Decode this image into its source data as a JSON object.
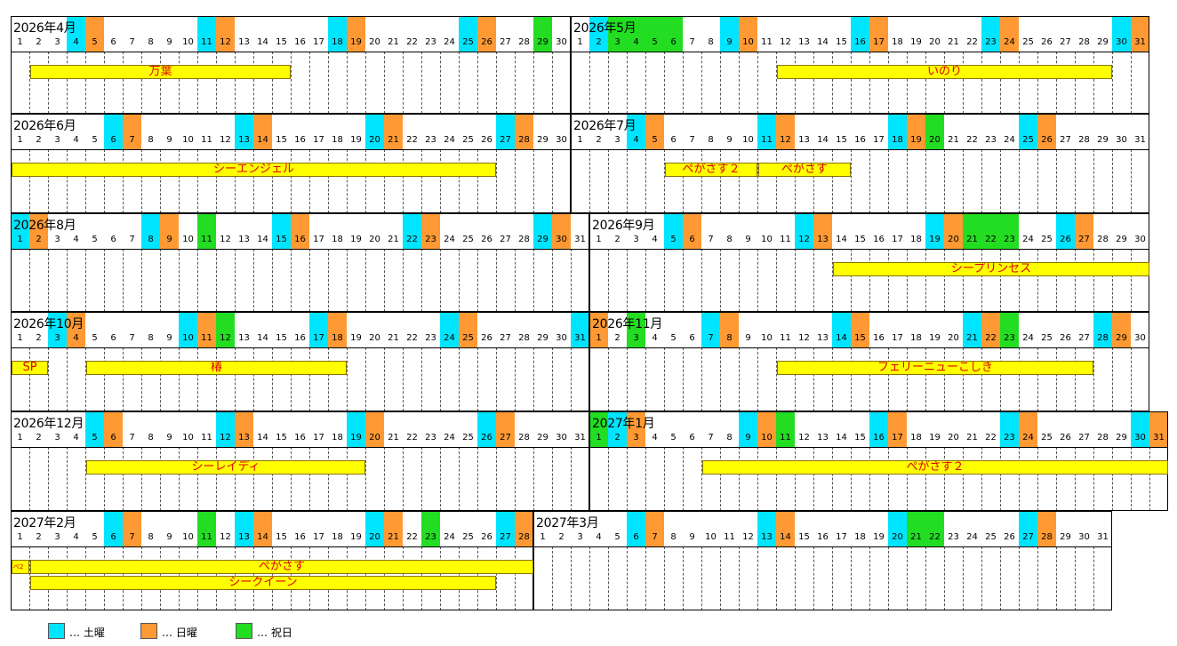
{
  "colors": {
    "saturday": "#00e5ff",
    "sunday": "#ff9933",
    "holiday": "#22dd22",
    "bar_fill": "#ffff00",
    "bar_text": "#e00000"
  },
  "months": [
    {
      "label": "2026年4月",
      "days": 30,
      "sat": [
        4,
        11,
        18,
        25
      ],
      "sun": [
        5,
        12,
        19,
        26
      ],
      "hol": [
        29
      ],
      "bars": [
        {
          "label": "万葉",
          "start": 2,
          "end": 15,
          "row": 0
        }
      ]
    },
    {
      "label": "2026年5月",
      "days": 31,
      "sat": [
        2,
        9,
        16,
        23,
        30
      ],
      "sun": [
        10,
        17,
        24,
        31
      ],
      "hol": [
        3,
        4,
        5,
        6
      ],
      "bars": [
        {
          "label": "いのり",
          "start": 12,
          "end": 29,
          "row": 0
        }
      ]
    },
    {
      "label": "2026年6月",
      "days": 30,
      "sat": [
        6,
        13,
        20,
        27
      ],
      "sun": [
        7,
        14,
        21,
        28
      ],
      "hol": [],
      "bars": [
        {
          "label": "シーエンジェル",
          "start": 1,
          "end": 26,
          "row": 0
        }
      ]
    },
    {
      "label": "2026年7月",
      "days": 31,
      "sat": [
        4,
        11,
        18,
        25
      ],
      "sun": [
        5,
        12,
        19,
        26
      ],
      "hol": [
        20
      ],
      "bars": [
        {
          "label": "ぺがさす２",
          "start": 6,
          "end": 10,
          "row": 0
        },
        {
          "label": "ぺがさす",
          "start": 11,
          "end": 15,
          "row": 0
        }
      ]
    },
    {
      "label": "2026年8月",
      "days": 31,
      "sat": [
        1,
        8,
        15,
        22,
        29
      ],
      "sun": [
        2,
        9,
        16,
        23,
        30
      ],
      "hol": [
        11
      ],
      "bars": []
    },
    {
      "label": "2026年9月",
      "days": 30,
      "sat": [
        5,
        12,
        19,
        26
      ],
      "sun": [
        6,
        13,
        20,
        27
      ],
      "hol": [
        21,
        22,
        23
      ],
      "bars": [
        {
          "label": "シープリンセス",
          "start": 14,
          "end": 30,
          "row": 0
        }
      ]
    },
    {
      "label": "2026年10月",
      "days": 31,
      "sat": [
        3,
        10,
        17,
        24,
        31
      ],
      "sun": [
        4,
        11,
        18,
        25
      ],
      "hol": [
        12
      ],
      "bars": [
        {
          "label": "SP",
          "start": 1,
          "end": 2,
          "row": 0
        },
        {
          "label": "椿",
          "start": 5,
          "end": 18,
          "row": 0
        }
      ]
    },
    {
      "label": "2026年11月",
      "days": 30,
      "sat": [
        7,
        14,
        21,
        28
      ],
      "sun": [
        1,
        8,
        15,
        22,
        29
      ],
      "hol": [
        3,
        23
      ],
      "bars": [
        {
          "label": "フェリーニューこしき",
          "start": 11,
          "end": 27,
          "row": 0
        }
      ]
    },
    {
      "label": "2026年12月",
      "days": 31,
      "sat": [
        5,
        12,
        19,
        26
      ],
      "sun": [
        6,
        13,
        20,
        27
      ],
      "hol": [],
      "bars": [
        {
          "label": "シーレイディ",
          "start": 5,
          "end": 19,
          "row": 0
        }
      ]
    },
    {
      "label": "2027年1月",
      "days": 31,
      "sat": [
        2,
        9,
        16,
        23,
        30
      ],
      "sun": [
        3,
        10,
        17,
        24,
        31
      ],
      "hol": [
        1,
        11
      ],
      "bars": [
        {
          "label": "ぺがさす２",
          "start": 7,
          "end": 31,
          "row": 0
        }
      ]
    },
    {
      "label": "2027年2月",
      "days": 28,
      "sat": [
        6,
        13,
        20,
        27
      ],
      "sun": [
        7,
        14,
        21,
        28
      ],
      "hol": [
        11,
        23
      ],
      "bars": [
        {
          "label": "ぺ2",
          "start": 1,
          "end": 1,
          "row": 0
        },
        {
          "label": "ぺがさす",
          "start": 2,
          "end": 28,
          "row": 0
        },
        {
          "label": "シークイーン",
          "start": 2,
          "end": 26,
          "row": 1
        }
      ]
    },
    {
      "label": "2027年3月",
      "days": 31,
      "sat": [
        6,
        13,
        20,
        27
      ],
      "sun": [
        7,
        14,
        21,
        28
      ],
      "hol": [
        21,
        22
      ],
      "bars": []
    }
  ],
  "legend": [
    {
      "label": "… 土曜",
      "color": "#00e5ff"
    },
    {
      "label": "… 日曜",
      "color": "#ff9933"
    },
    {
      "label": "… 祝日",
      "color": "#22dd22"
    }
  ]
}
